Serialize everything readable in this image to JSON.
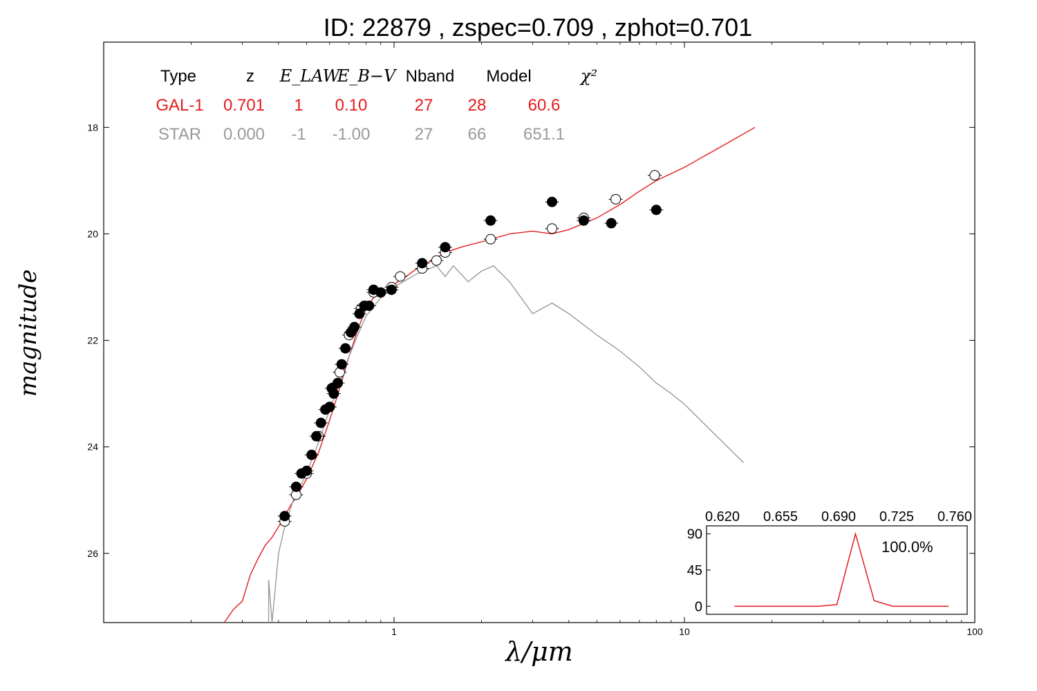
{
  "chart_data": {
    "type": "scatter",
    "title": "ID:  22879 , zspec=0.709 , zphot=0.701",
    "xlabel": "λ/μm",
    "ylabel": "magnitude",
    "x_scale": "log",
    "x_range": [
      0.1,
      100
    ],
    "y_range": [
      27.3,
      16.4
    ],
    "y_inverted": true,
    "x_ticks": [
      "1",
      "10",
      "100"
    ],
    "y_ticks": [
      "18",
      "20",
      "22",
      "24",
      "26"
    ],
    "fit_table": {
      "headers": [
        "Type",
        "z",
        "E_LAW",
        "E_B−V",
        "Nband",
        "Model",
        "χ²"
      ],
      "rows": [
        {
          "cells": [
            "GAL-1",
            "0.701",
            "1",
            "0.10",
            "27",
            "28",
            "60.6"
          ],
          "color": "#e41a1c"
        },
        {
          "cells": [
            "STAR",
            "0.000",
            "-1",
            "-1.00",
            "27",
            "66",
            "651.1"
          ],
          "color": "#999999"
        }
      ]
    },
    "series": [
      {
        "kind": "model-sed",
        "color": "#e41a1c",
        "points": [
          [
            0.26,
            27.3
          ],
          [
            0.28,
            27.05
          ],
          [
            0.3,
            26.9
          ],
          [
            0.32,
            26.4
          ],
          [
            0.34,
            26.1
          ],
          [
            0.36,
            25.85
          ],
          [
            0.38,
            25.7
          ],
          [
            0.4,
            25.5
          ],
          [
            0.42,
            25.3
          ],
          [
            0.44,
            25.1
          ],
          [
            0.46,
            24.95
          ],
          [
            0.5,
            24.6
          ],
          [
            0.55,
            24.1
          ],
          [
            0.6,
            23.5
          ],
          [
            0.65,
            22.9
          ],
          [
            0.7,
            22.3
          ],
          [
            0.75,
            21.8
          ],
          [
            0.8,
            21.4
          ],
          [
            0.85,
            21.2
          ],
          [
            0.9,
            21.1
          ],
          [
            0.95,
            21.05
          ],
          [
            1.0,
            20.95
          ],
          [
            1.1,
            20.8
          ],
          [
            1.2,
            20.65
          ],
          [
            1.3,
            20.55
          ],
          [
            1.4,
            20.45
          ],
          [
            1.5,
            20.35
          ],
          [
            1.7,
            20.25
          ],
          [
            2.0,
            20.15
          ],
          [
            2.5,
            20.0
          ],
          [
            3.0,
            19.95
          ],
          [
            3.5,
            20.0
          ],
          [
            4.0,
            19.92
          ],
          [
            5.0,
            19.7
          ],
          [
            6.0,
            19.45
          ],
          [
            7.0,
            19.2
          ],
          [
            8.0,
            19.0
          ],
          [
            10.0,
            18.75
          ],
          [
            13.0,
            18.4
          ],
          [
            17.5,
            18.0
          ]
        ]
      },
      {
        "kind": "star-sed",
        "color": "#999999",
        "points": [
          [
            0.37,
            27.3
          ],
          [
            0.37,
            26.5
          ],
          [
            0.38,
            27.3
          ],
          [
            0.4,
            26.0
          ],
          [
            0.42,
            25.5
          ],
          [
            0.45,
            25.0
          ],
          [
            0.5,
            24.5
          ],
          [
            0.55,
            23.9
          ],
          [
            0.6,
            23.3
          ],
          [
            0.65,
            22.8
          ],
          [
            0.7,
            22.3
          ],
          [
            0.75,
            21.9
          ],
          [
            0.8,
            21.55
          ],
          [
            0.9,
            21.2
          ],
          [
            1.0,
            21.0
          ],
          [
            1.2,
            20.75
          ],
          [
            1.4,
            20.6
          ],
          [
            1.5,
            20.8
          ],
          [
            1.6,
            20.6
          ],
          [
            1.8,
            20.9
          ],
          [
            2.0,
            20.7
          ],
          [
            2.2,
            20.6
          ],
          [
            2.5,
            20.9
          ],
          [
            3.0,
            21.5
          ],
          [
            3.5,
            21.3
          ],
          [
            4.0,
            21.5
          ],
          [
            5.0,
            21.9
          ],
          [
            6.0,
            22.2
          ],
          [
            7.0,
            22.5
          ],
          [
            8.0,
            22.8
          ],
          [
            9.0,
            23.0
          ],
          [
            10.0,
            23.2
          ],
          [
            16.0,
            24.3
          ]
        ]
      },
      {
        "kind": "observed",
        "fill": "#000000",
        "points": [
          [
            0.42,
            25.3
          ],
          [
            0.46,
            24.75
          ],
          [
            0.48,
            24.5
          ],
          [
            0.5,
            24.45
          ],
          [
            0.52,
            24.15
          ],
          [
            0.54,
            23.8
          ],
          [
            0.56,
            23.55
          ],
          [
            0.58,
            23.3
          ],
          [
            0.6,
            23.25
          ],
          [
            0.61,
            22.9
          ],
          [
            0.62,
            23.0
          ],
          [
            0.64,
            22.8
          ],
          [
            0.66,
            22.45
          ],
          [
            0.68,
            22.15
          ],
          [
            0.71,
            21.85
          ],
          [
            0.73,
            21.75
          ],
          [
            0.76,
            21.5
          ],
          [
            0.79,
            21.35
          ],
          [
            0.82,
            21.35
          ],
          [
            0.85,
            21.05
          ],
          [
            0.9,
            21.1
          ],
          [
            0.98,
            21.05
          ],
          [
            1.25,
            20.55
          ],
          [
            1.5,
            20.25
          ],
          [
            2.15,
            19.75
          ],
          [
            3.5,
            19.4
          ],
          [
            4.5,
            19.75
          ],
          [
            5.6,
            19.8
          ],
          [
            8.0,
            19.55
          ]
        ]
      },
      {
        "kind": "model-magnitudes",
        "fill": "#ffffff",
        "points": [
          [
            0.42,
            25.4
          ],
          [
            0.46,
            24.9
          ],
          [
            0.5,
            24.5
          ],
          [
            0.55,
            23.8
          ],
          [
            0.6,
            23.25
          ],
          [
            0.65,
            22.6
          ],
          [
            0.7,
            21.9
          ],
          [
            0.77,
            21.4
          ],
          [
            0.85,
            21.1
          ],
          [
            0.98,
            21.0
          ],
          [
            1.05,
            20.8
          ],
          [
            1.25,
            20.65
          ],
          [
            1.4,
            20.5
          ],
          [
            1.5,
            20.35
          ],
          [
            2.15,
            20.1
          ],
          [
            3.5,
            19.9
          ],
          [
            4.5,
            19.7
          ],
          [
            5.8,
            19.35
          ],
          [
            7.9,
            18.9
          ]
        ]
      }
    ],
    "inset": {
      "type": "line",
      "color": "#e41a1c",
      "top_ticks": [
        "0.620",
        "0.655",
        "0.690",
        "0.725",
        "0.760"
      ],
      "y_ticks": [
        "0",
        "45",
        "90"
      ],
      "label": "100.0%",
      "x_range": [
        0.62,
        0.76
      ],
      "y_range": [
        -10,
        100
      ],
      "points": [
        [
          0.635,
          0
        ],
        [
          0.68,
          0
        ],
        [
          0.69,
          2
        ],
        [
          0.7,
          90
        ],
        [
          0.71,
          7
        ],
        [
          0.72,
          0
        ],
        [
          0.75,
          0
        ]
      ]
    }
  }
}
